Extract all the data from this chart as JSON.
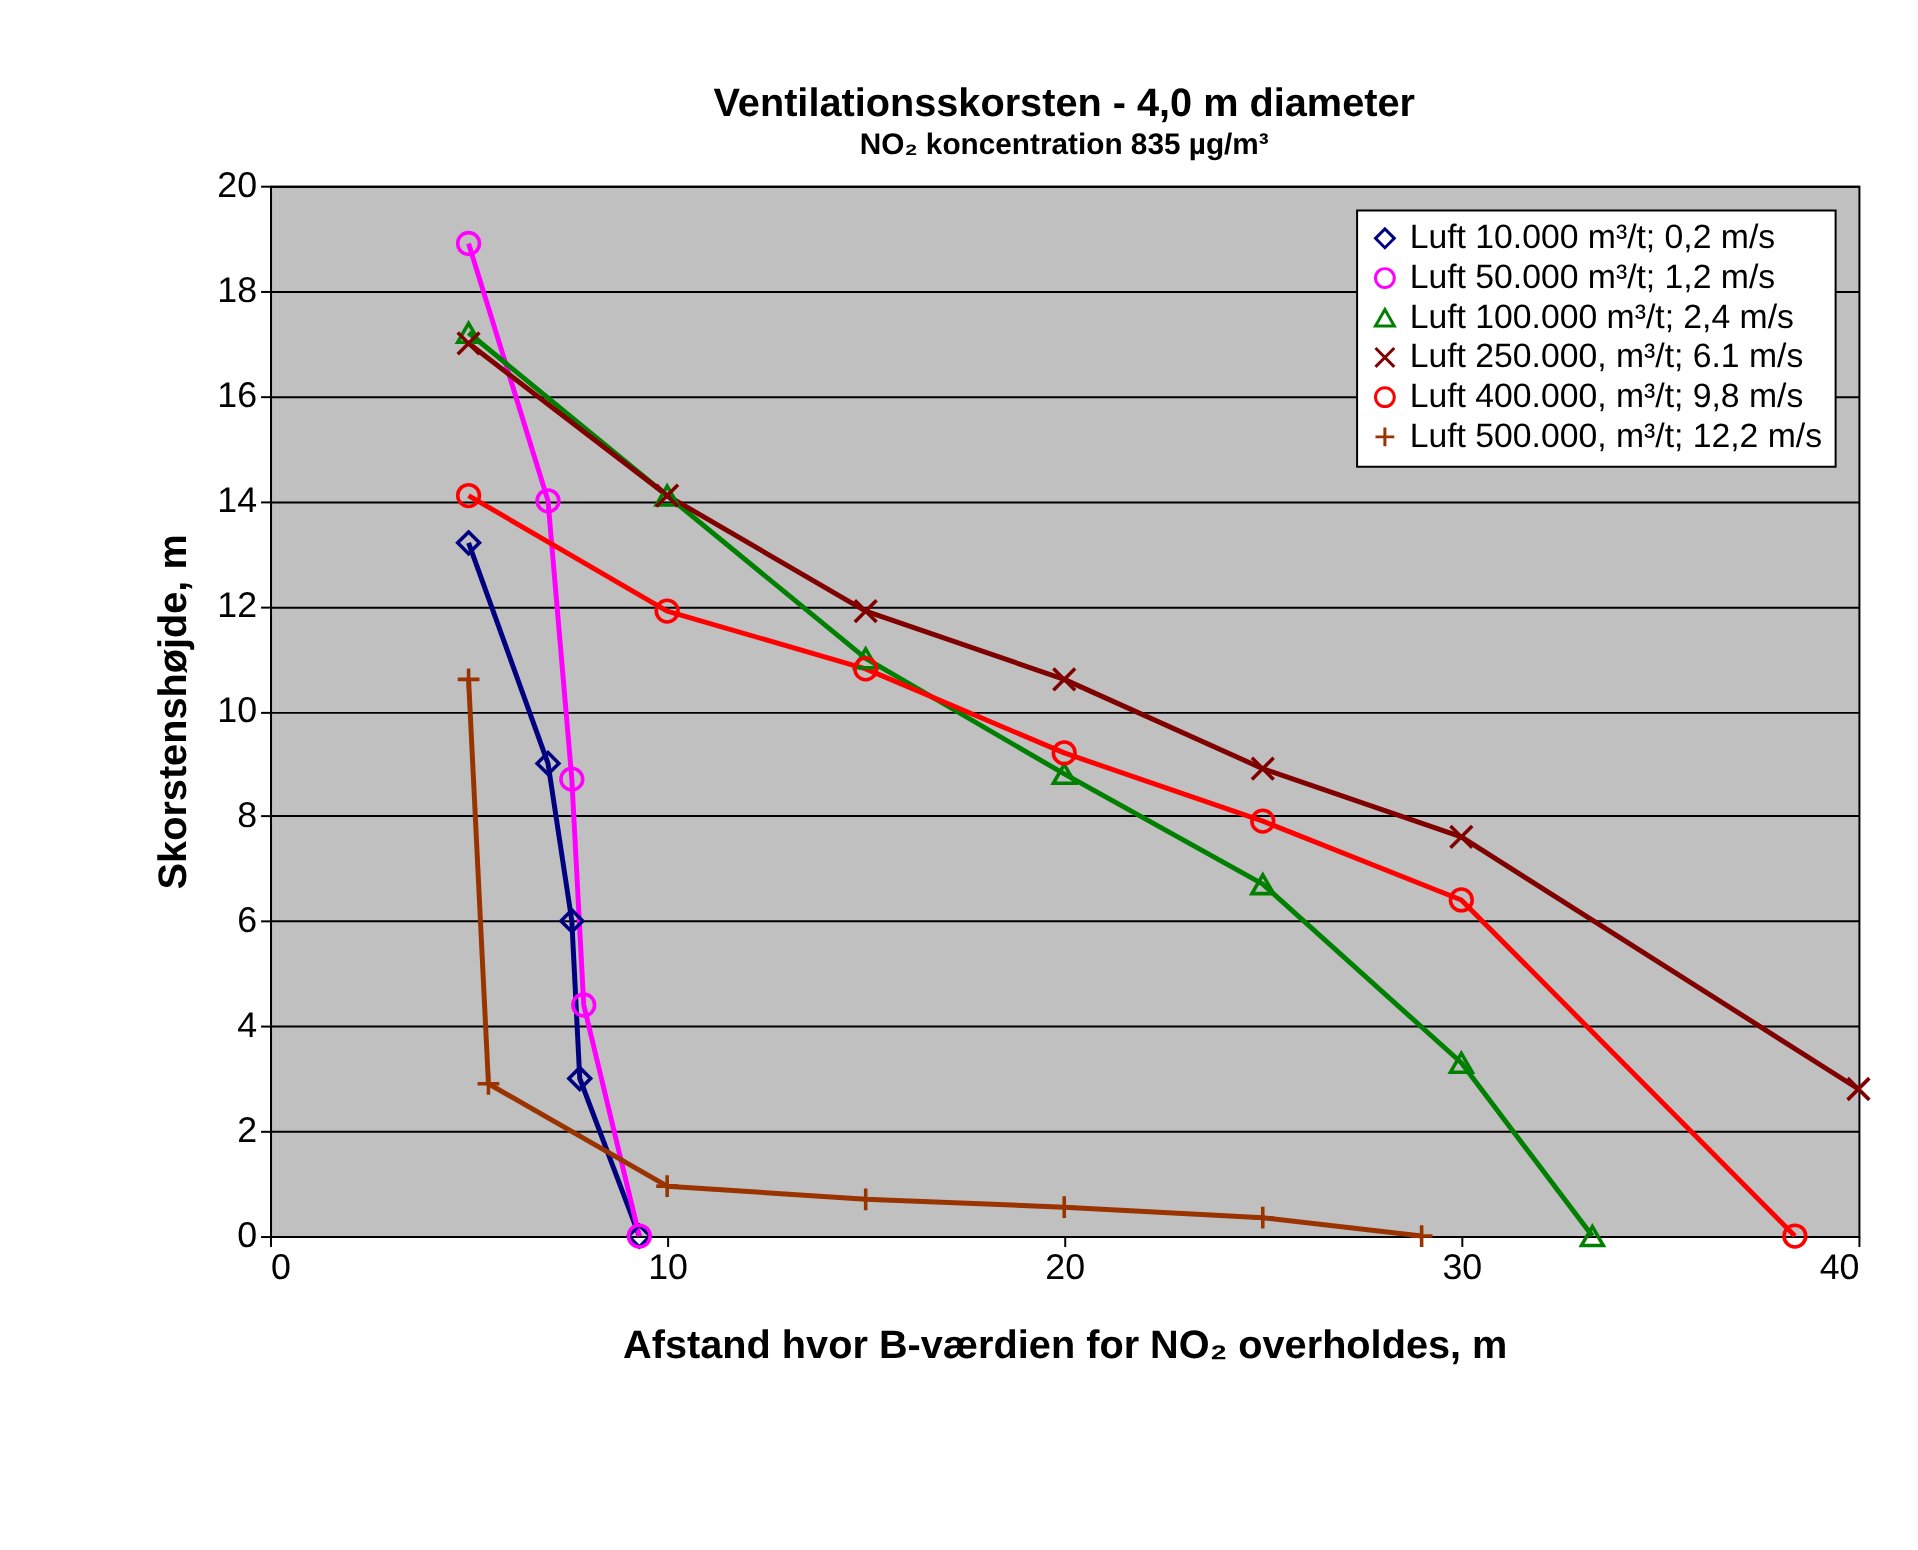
{
  "chart_data": {
    "type": "line",
    "title": "Ventilationsskorsten - 4,0 m diameter",
    "subtitle": "NO₂ koncentration 835 µg/m³",
    "xlabel": "Afstand hvor B-værdien for NO₂ overholdes, m",
    "ylabel": "Skorstenshøjde, m",
    "xlim": [
      0,
      40
    ],
    "xticks": [
      0,
      10,
      20,
      30,
      40
    ],
    "ylim": [
      0,
      20
    ],
    "yticks": [
      0,
      2,
      4,
      6,
      8,
      10,
      12,
      14,
      16,
      18,
      20
    ],
    "grid": "y",
    "legend": "top right",
    "series": [
      {
        "name": "Luft 10.000 m³/t; 0,2 m/s",
        "color": "#000080",
        "marker": "diamond",
        "x": [
          5.0,
          7.0,
          7.6,
          7.8,
          9.3
        ],
        "values": [
          13.2,
          9.0,
          6.0,
          3.0,
          0.0
        ]
      },
      {
        "name": "Luft 50.000 m³/t; 1,2 m/s",
        "color": "#ff00ff",
        "marker": "circle",
        "x": [
          5.0,
          7.0,
          7.6,
          7.9,
          9.3
        ],
        "values": [
          18.9,
          14.0,
          8.7,
          4.4,
          0.0
        ]
      },
      {
        "name": "Luft 100.000 m³/t; 2,4 m/s",
        "color": "#008000",
        "marker": "triangle",
        "x": [
          5,
          10,
          15,
          20,
          25,
          30,
          33.3
        ],
        "values": [
          17.2,
          14.1,
          11.0,
          8.8,
          6.7,
          3.3,
          0.0
        ]
      },
      {
        "name": "Luft 250.000, m³/t; 6.1 m/s",
        "color": "#800000",
        "marker": "x",
        "x": [
          5,
          10,
          15,
          20,
          25,
          30,
          40
        ],
        "values": [
          17.0,
          14.1,
          11.9,
          10.6,
          8.9,
          7.6,
          2.8
        ]
      },
      {
        "name": "Luft 400.000, m³/t; 9,8 m/s",
        "color": "#ff0000",
        "marker": "circle",
        "x": [
          5,
          10,
          15,
          20,
          25,
          30,
          38.4
        ],
        "values": [
          14.1,
          11.9,
          10.8,
          9.2,
          7.9,
          6.4,
          0.0
        ]
      },
      {
        "name": "Luft 500.000, m³/t; 12,2 m/s",
        "color": "#993300",
        "marker": "cross",
        "x": [
          5.0,
          5.5,
          10,
          15,
          20,
          25,
          29
        ],
        "values": [
          10.6,
          2.9,
          0.95,
          0.7,
          0.55,
          0.35,
          0.0
        ]
      }
    ]
  }
}
